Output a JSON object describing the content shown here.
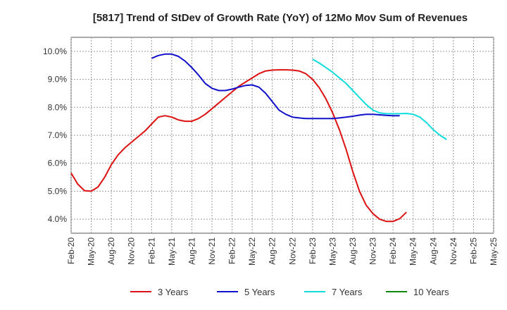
{
  "chart_data": {
    "type": "line",
    "title": "[5817]  Trend of StDev of Growth Rate (YoY) of 12Mo Mov Sum of Revenues",
    "xlabel": "",
    "ylabel": "",
    "ylim": [
      3.5,
      10.5
    ],
    "yticks": [
      4.0,
      5.0,
      6.0,
      7.0,
      8.0,
      9.0,
      10.0
    ],
    "ytick_labels": [
      "4.0%",
      "5.0%",
      "6.0%",
      "7.0%",
      "8.0%",
      "9.0%",
      "10.0%"
    ],
    "xticks": [
      "Feb-20",
      "May-20",
      "Aug-20",
      "Nov-20",
      "Feb-21",
      "May-21",
      "Aug-21",
      "Nov-21",
      "Feb-22",
      "May-22",
      "Aug-22",
      "Nov-22",
      "Feb-23",
      "May-23",
      "Aug-23",
      "Nov-23",
      "Feb-24",
      "May-24",
      "Aug-24",
      "Nov-24",
      "Feb-25",
      "May-25"
    ],
    "grid": true,
    "legend_position": "bottom",
    "series": [
      {
        "name": "3 Years",
        "color": "#dd1111",
        "start_index": 0,
        "values": [
          5.65,
          5.25,
          5.02,
          5.0,
          5.15,
          5.5,
          5.95,
          6.3,
          6.55,
          6.75,
          6.95,
          7.15,
          7.4,
          7.65,
          7.7,
          7.65,
          7.55,
          7.5,
          7.5,
          7.6,
          7.75,
          7.95,
          8.15,
          8.35,
          8.55,
          8.75,
          8.9,
          9.05,
          9.2,
          9.3,
          9.33,
          9.34,
          9.34,
          9.33,
          9.3,
          9.2,
          9.0,
          8.7,
          8.3,
          7.8,
          7.2,
          6.5,
          5.7,
          5.0,
          4.5,
          4.2,
          4.0,
          3.92,
          3.92,
          4.02,
          4.25
        ]
      },
      {
        "name": "5 Years",
        "color": "#1111cc",
        "start_index": 12,
        "values": [
          9.75,
          9.85,
          9.9,
          9.9,
          9.82,
          9.65,
          9.42,
          9.15,
          8.85,
          8.68,
          8.6,
          8.6,
          8.65,
          8.72,
          8.78,
          8.8,
          8.72,
          8.5,
          8.2,
          7.9,
          7.75,
          7.65,
          7.62,
          7.6,
          7.6,
          7.6,
          7.6,
          7.6,
          7.62,
          7.65,
          7.68,
          7.72,
          7.75,
          7.75,
          7.73,
          7.71,
          7.7,
          7.7
        ]
      },
      {
        "name": "7 Years",
        "color": "#11dddd",
        "start_index": 36,
        "values": [
          9.72,
          9.58,
          9.42,
          9.25,
          9.05,
          8.85,
          8.6,
          8.35,
          8.1,
          7.9,
          7.8,
          7.77,
          7.77,
          7.77,
          7.78,
          7.75,
          7.65,
          7.45,
          7.2,
          7.0,
          6.85
        ]
      },
      {
        "name": "10 Years",
        "color": "#118811",
        "start_index": 0,
        "values": []
      }
    ]
  }
}
